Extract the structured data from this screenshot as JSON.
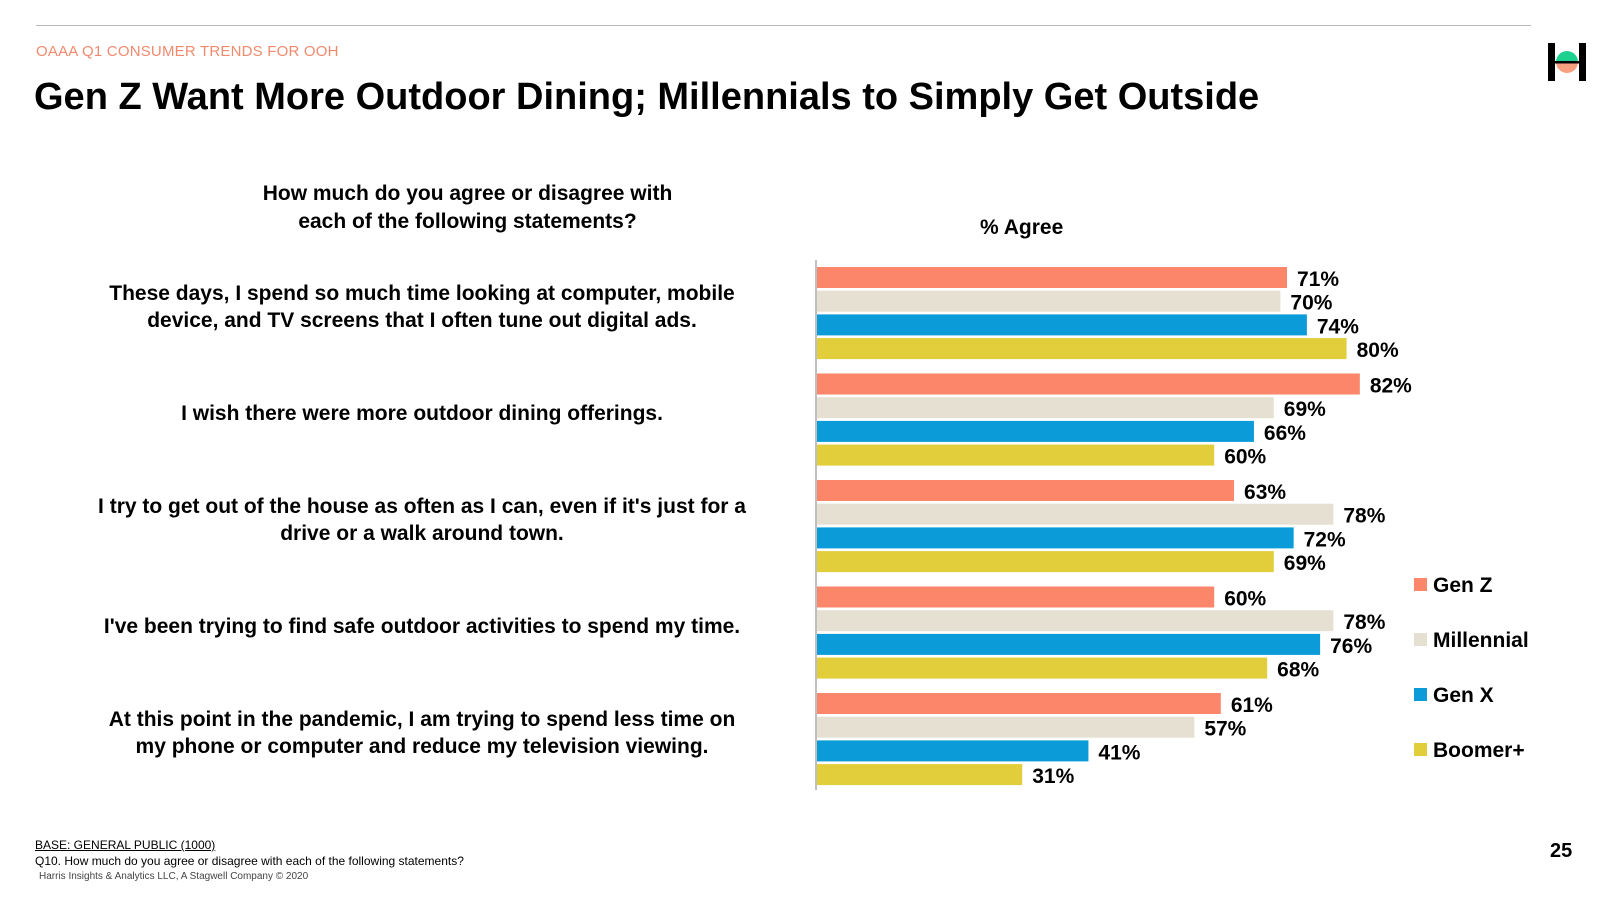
{
  "header": {
    "kicker": "OAAA Q1 CONSUMER TRENDS FOR OOH",
    "title": "Gen Z Want More Outdoor Dining; Millennials to Simply Get Outside"
  },
  "question": [
    "How much do you agree or disagree with",
    "each of the following statements?"
  ],
  "chart_data": {
    "type": "bar",
    "orientation": "horizontal",
    "xlabel": "% Agree",
    "xlim": [
      0,
      100
    ],
    "value_suffix": "%",
    "categories": [
      [
        "These days, I spend so much time looking at computer, mobile",
        "device, and TV screens that I often tune out digital ads."
      ],
      [
        "I wish there were more outdoor dining offerings."
      ],
      [
        "I try to get out of the house as often as I can, even if it's just for a",
        "drive or a walk around town."
      ],
      [
        "I've been trying to find safe outdoor activities to spend my time."
      ],
      [
        "At this point in the pandemic, I am trying to spend less time on",
        "my phone or computer and reduce my television viewing."
      ]
    ],
    "series": [
      {
        "name": "Gen Z",
        "color": "#fb8669",
        "values": [
          71,
          82,
          63,
          60,
          61
        ]
      },
      {
        "name": "Millennial",
        "color": "#e6e0d2",
        "values": [
          70,
          69,
          78,
          78,
          57
        ]
      },
      {
        "name": "Gen X",
        "color": "#0a9bd8",
        "values": [
          74,
          66,
          72,
          76,
          41
        ]
      },
      {
        "name": "Boomer+",
        "color": "#e2cd3a",
        "values": [
          80,
          60,
          69,
          68,
          31
        ]
      }
    ],
    "legend_position": "right",
    "grid": false
  },
  "footer": {
    "base": "BASE: GENERAL PUBLIC (1000)",
    "question_note": "Q10. How much do you agree or disagree with each of the following statements?",
    "copyright": "Harris Insights & Analytics LLC, A Stagwell Company © 2020",
    "page_number": "25"
  },
  "logo": {
    "icon": "harris-logo-icon",
    "colors": {
      "top": "#1fd18f",
      "bottom": "#f6a07f",
      "frame": "#000000"
    }
  }
}
